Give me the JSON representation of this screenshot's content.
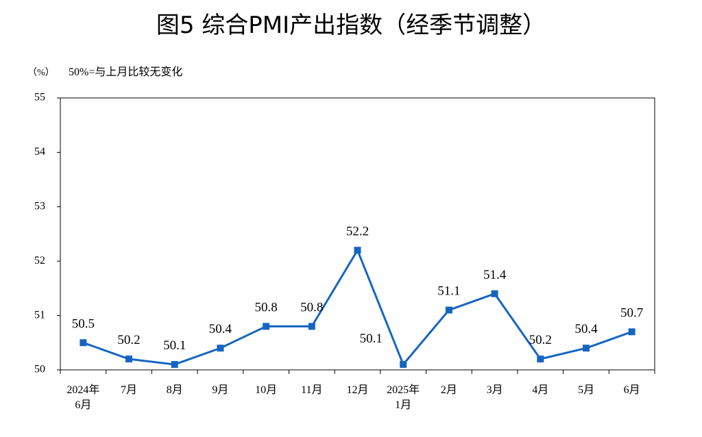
{
  "chart_data": {
    "type": "line",
    "title": "图5  综合PMI产出指数（经季节调整）",
    "y_unit": "（%）",
    "note": "50%=与上月比较无变化",
    "categories": [
      "2024年\n6月",
      "7月",
      "8月",
      "9月",
      "10月",
      "11月",
      "12月",
      "2025年\n1月",
      "2月",
      "3月",
      "4月",
      "5月",
      "6月"
    ],
    "values": [
      50.5,
      50.2,
      50.1,
      50.4,
      50.8,
      50.8,
      52.2,
      50.1,
      51.1,
      51.4,
      50.2,
      50.4,
      50.7
    ],
    "color": "#1565c0",
    "ylim": [
      50,
      55
    ],
    "yticks": [
      50,
      51,
      52,
      53,
      54,
      55
    ],
    "grid": false
  }
}
